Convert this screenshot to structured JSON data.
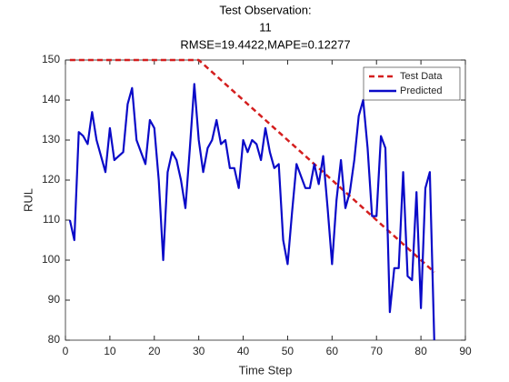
{
  "chart_data": {
    "type": "line",
    "title": [
      "Test Observation:",
      "11",
      "RMSE=19.4422,MAPE=0.12277"
    ],
    "xlabel": "Time Step",
    "ylabel": "RUL",
    "x": [
      1,
      2,
      3,
      4,
      5,
      6,
      7,
      8,
      9,
      10,
      11,
      12,
      13,
      14,
      15,
      16,
      17,
      18,
      19,
      20,
      21,
      22,
      23,
      24,
      25,
      26,
      27,
      28,
      29,
      30,
      31,
      32,
      33,
      34,
      35,
      36,
      37,
      38,
      39,
      40,
      41,
      42,
      43,
      44,
      45,
      46,
      47,
      48,
      49,
      50,
      51,
      52,
      53,
      54,
      55,
      56,
      57,
      58,
      59,
      60,
      61,
      62,
      63,
      64,
      65,
      66,
      67,
      68,
      69,
      70,
      71,
      72,
      73,
      74,
      75,
      76,
      77,
      78,
      79,
      80,
      81,
      82,
      83
    ],
    "series": [
      {
        "name": "Test Data",
        "color": "#d41e1e",
        "dash": true,
        "values": [
          150,
          150,
          150,
          150,
          150,
          150,
          150,
          150,
          150,
          150,
          150,
          150,
          150,
          150,
          150,
          150,
          150,
          150,
          150,
          150,
          150,
          150,
          150,
          150,
          150,
          150,
          150,
          150,
          150,
          150,
          149,
          148,
          147,
          146,
          145,
          144,
          143,
          142,
          141,
          140,
          139,
          138,
          137,
          136,
          135,
          134,
          133,
          132,
          131,
          130,
          129,
          128,
          127,
          126,
          125,
          124,
          123,
          122,
          121,
          120,
          119,
          118,
          117,
          116,
          115,
          114,
          113,
          112,
          111,
          110,
          109,
          108,
          107,
          106,
          105,
          104,
          103,
          102,
          101,
          100,
          99,
          98,
          97
        ]
      },
      {
        "name": "Predicted",
        "color": "#0a0ac8",
        "dash": false,
        "values": [
          110,
          105,
          132,
          131,
          129,
          137,
          130,
          126,
          122,
          133,
          125,
          126,
          127,
          139,
          143,
          130,
          127,
          124,
          135,
          133,
          120,
          100,
          122,
          127,
          125,
          120,
          113,
          128,
          144,
          130,
          122,
          128,
          130,
          135,
          129,
          130,
          123,
          123,
          118,
          130,
          127,
          130,
          129,
          125,
          133,
          127,
          123,
          124,
          105,
          99,
          112,
          124,
          121,
          118,
          118,
          124,
          119,
          126,
          113,
          99,
          115,
          125,
          113,
          117,
          125,
          136,
          140,
          128,
          111,
          111,
          131,
          128,
          87,
          98,
          98,
          122,
          96,
          95,
          117,
          88,
          118,
          122,
          80
        ]
      }
    ],
    "xlim": [
      0,
      90
    ],
    "xticks": [
      0,
      10,
      20,
      30,
      40,
      50,
      60,
      70,
      80,
      90
    ],
    "ylim": [
      80,
      150
    ],
    "yticks": [
      80,
      90,
      100,
      110,
      120,
      130,
      140,
      150
    ],
    "legend": "northeast"
  }
}
